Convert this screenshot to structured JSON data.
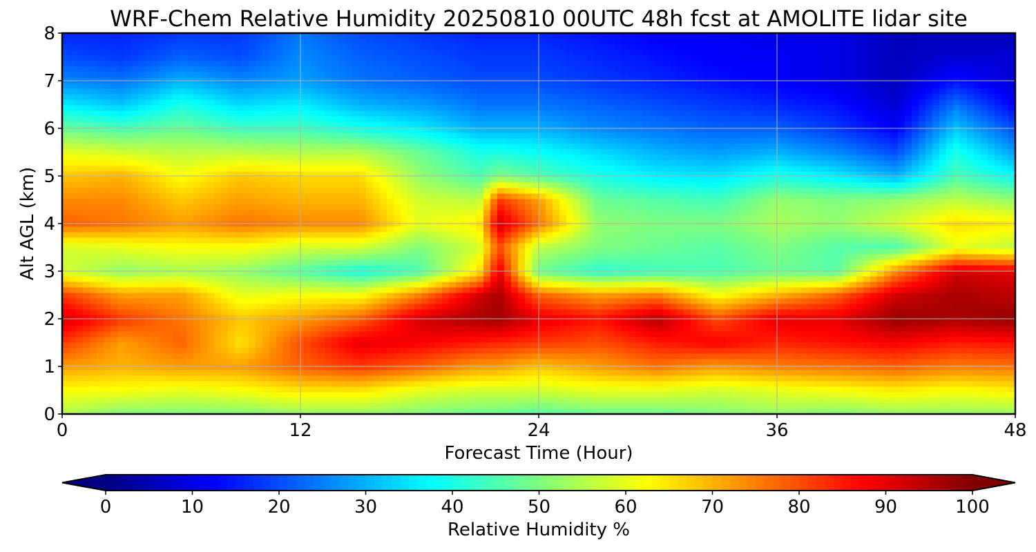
{
  "chart_data": {
    "type": "heatmap",
    "title": "WRF-Chem Relative Humidity 20250810 00UTC 48h fcst at AMOLITE lidar site",
    "xlabel": "Forecast Time (Hour)",
    "ylabel": "Alt AGL (km)",
    "xlim": [
      0,
      48
    ],
    "ylim": [
      0,
      8
    ],
    "x_ticks": [
      0,
      12,
      24,
      36,
      48
    ],
    "y_ticks": [
      0,
      1,
      2,
      3,
      4,
      5,
      6,
      7,
      8
    ],
    "grid": true,
    "colormap": "jet",
    "colorbar": {
      "label": "Relative Humidity %",
      "range": [
        0,
        100
      ],
      "ticks": [
        0,
        10,
        20,
        30,
        40,
        50,
        60,
        70,
        80,
        90,
        100
      ],
      "extend": "both",
      "orientation": "horizontal"
    },
    "x": [
      0,
      3,
      6,
      9,
      12,
      15,
      18,
      21,
      22,
      24,
      27,
      30,
      33,
      36,
      39,
      42,
      45,
      48
    ],
    "y": [
      0,
      0.5,
      1,
      1.5,
      2,
      2.5,
      3,
      3.5,
      4,
      4.5,
      5,
      5.5,
      6,
      6.5,
      7,
      7.5,
      8
    ],
    "z": [
      [
        55,
        50,
        50,
        50,
        52,
        52,
        50,
        48,
        48,
        46,
        48,
        48,
        50,
        52,
        50,
        52,
        52,
        52
      ],
      [
        62,
        62,
        60,
        62,
        65,
        65,
        60,
        58,
        58,
        58,
        60,
        60,
        58,
        60,
        62,
        64,
        62,
        64
      ],
      [
        72,
        70,
        72,
        72,
        78,
        82,
        78,
        72,
        72,
        68,
        72,
        76,
        72,
        75,
        76,
        78,
        75,
        76
      ],
      [
        82,
        72,
        78,
        65,
        80,
        90,
        88,
        85,
        84,
        82,
        80,
        85,
        88,
        84,
        86,
        88,
        85,
        86
      ],
      [
        92,
        82,
        76,
        68,
        72,
        78,
        92,
        96,
        97,
        90,
        86,
        95,
        80,
        90,
        90,
        98,
        96,
        98
      ],
      [
        82,
        72,
        72,
        60,
        62,
        62,
        75,
        92,
        96,
        78,
        72,
        75,
        62,
        70,
        78,
        92,
        96,
        94
      ],
      [
        58,
        52,
        54,
        52,
        46,
        40,
        45,
        65,
        90,
        48,
        42,
        44,
        45,
        48,
        46,
        74,
        92,
        90
      ],
      [
        58,
        60,
        62,
        62,
        58,
        58,
        50,
        58,
        80,
        56,
        50,
        48,
        46,
        50,
        46,
        45,
        60,
        56
      ],
      [
        78,
        76,
        72,
        76,
        74,
        74,
        60,
        64,
        92,
        76,
        52,
        50,
        50,
        54,
        52,
        58,
        66,
        64
      ],
      [
        74,
        74,
        68,
        72,
        70,
        70,
        58,
        56,
        82,
        72,
        48,
        46,
        44,
        52,
        50,
        52,
        56,
        52
      ],
      [
        68,
        70,
        62,
        68,
        66,
        66,
        52,
        45,
        50,
        46,
        40,
        36,
        35,
        40,
        36,
        30,
        45,
        38
      ],
      [
        60,
        58,
        56,
        56,
        55,
        55,
        48,
        40,
        40,
        38,
        34,
        30,
        28,
        30,
        26,
        20,
        40,
        28
      ],
      [
        48,
        45,
        48,
        44,
        44,
        40,
        36,
        30,
        30,
        30,
        26,
        24,
        22,
        22,
        18,
        12,
        32,
        20
      ],
      [
        36,
        32,
        40,
        34,
        36,
        30,
        28,
        24,
        24,
        24,
        22,
        20,
        18,
        16,
        14,
        8,
        24,
        12
      ],
      [
        26,
        24,
        30,
        26,
        28,
        24,
        22,
        20,
        20,
        20,
        18,
        16,
        14,
        12,
        10,
        6,
        14,
        8
      ],
      [
        20,
        18,
        22,
        20,
        26,
        22,
        20,
        18,
        18,
        18,
        16,
        14,
        12,
        12,
        10,
        6,
        8,
        8
      ],
      [
        16,
        16,
        18,
        18,
        24,
        20,
        18,
        16,
        16,
        16,
        14,
        12,
        12,
        10,
        10,
        6,
        6,
        6
      ]
    ]
  }
}
